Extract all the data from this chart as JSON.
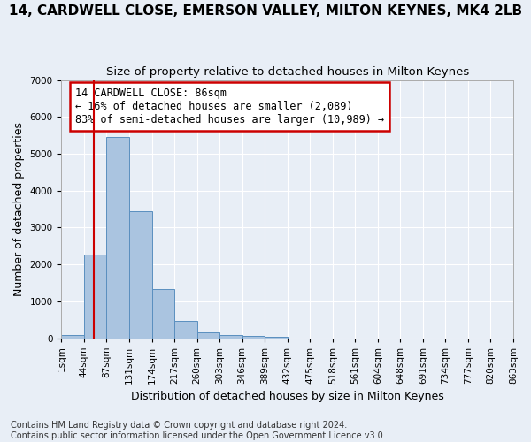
{
  "title": "14, CARDWELL CLOSE, EMERSON VALLEY, MILTON KEYNES, MK4 2LB",
  "subtitle": "Size of property relative to detached houses in Milton Keynes",
  "xlabel": "Distribution of detached houses by size in Milton Keynes",
  "ylabel": "Number of detached properties",
  "footer_line1": "Contains HM Land Registry data © Crown copyright and database right 2024.",
  "footer_line2": "Contains public sector information licensed under the Open Government Licence v3.0.",
  "bin_labels": [
    "1sqm",
    "44sqm",
    "87sqm",
    "131sqm",
    "174sqm",
    "217sqm",
    "260sqm",
    "303sqm",
    "346sqm",
    "389sqm",
    "432sqm",
    "475sqm",
    "518sqm",
    "561sqm",
    "604sqm",
    "648sqm",
    "691sqm",
    "734sqm",
    "777sqm",
    "820sqm",
    "863sqm"
  ],
  "bar_values": [
    75,
    2270,
    5460,
    3430,
    1320,
    470,
    155,
    90,
    65,
    40,
    0,
    0,
    0,
    0,
    0,
    0,
    0,
    0,
    0,
    0
  ],
  "bar_color": "#aac4e0",
  "bar_edge_color": "#5a8fbf",
  "annotation_text": "14 CARDWELL CLOSE: 86sqm\n← 16% of detached houses are smaller (2,089)\n83% of semi-detached houses are larger (10,989) →",
  "annotation_box_color": "#ffffff",
  "annotation_box_edge_color": "#cc0000",
  "vline_x": 1.42,
  "vline_color": "#cc0000",
  "ylim": [
    0,
    7000
  ],
  "yticks": [
    0,
    1000,
    2000,
    3000,
    4000,
    5000,
    6000,
    7000
  ],
  "background_color": "#e8eef6",
  "grid_color": "#ffffff",
  "title_fontsize": 11,
  "subtitle_fontsize": 9.5,
  "axis_label_fontsize": 9,
  "tick_fontsize": 7.5,
  "annotation_fontsize": 8.5,
  "footer_fontsize": 7
}
